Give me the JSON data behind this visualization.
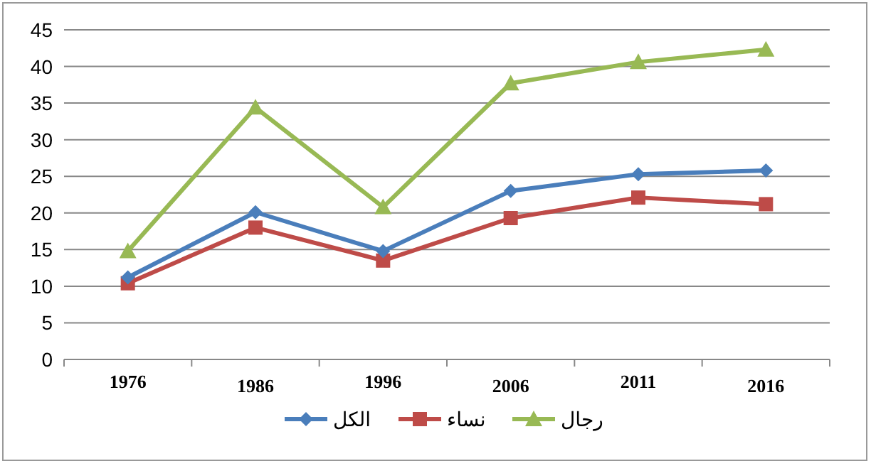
{
  "chart_data": {
    "type": "line",
    "categories": [
      "1976",
      "1986",
      "1996",
      "2006",
      "2011",
      "2016"
    ],
    "series": [
      {
        "name": "الكل",
        "color": "#4a7ebb",
        "marker": "diamond",
        "values": [
          11.2,
          20.1,
          14.8,
          23.0,
          25.3,
          25.8
        ]
      },
      {
        "name": "نساء",
        "color": "#be4b48",
        "marker": "square",
        "values": [
          10.4,
          18.0,
          13.5,
          19.3,
          22.1,
          21.2
        ]
      },
      {
        "name": "رجال",
        "color": "#98b954",
        "marker": "triangle",
        "values": [
          14.8,
          34.4,
          20.8,
          37.7,
          40.6,
          42.3
        ]
      }
    ],
    "ylim": [
      0,
      45
    ],
    "yticks": [
      0,
      5,
      10,
      15,
      20,
      25,
      30,
      35,
      40,
      45
    ],
    "grid": "y",
    "legend": "bottom"
  }
}
